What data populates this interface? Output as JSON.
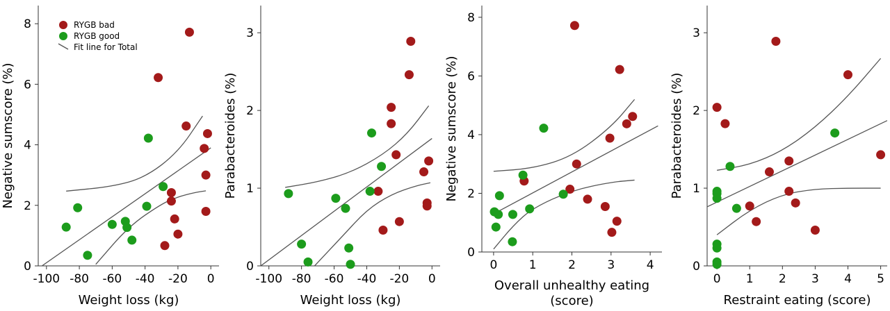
{
  "legend": {
    "entries": [
      {
        "label": "RYGB bad",
        "color": "#a31a1a",
        "kind": "marker"
      },
      {
        "label": "RYGB good",
        "color": "#1c9c1c",
        "kind": "marker"
      },
      {
        "label": "Fit line for Total",
        "color": "#555555",
        "kind": "line"
      }
    ]
  },
  "colors": {
    "bad": "#a31a1a",
    "good": "#1c9c1c",
    "fit": "#555555",
    "axis": "#333333"
  },
  "chart_data": [
    {
      "type": "scatter",
      "xlabel": "Weight loss (kg)",
      "ylabel": "Negative sumscore (%)",
      "xlim": [
        -105,
        5
      ],
      "ylim": [
        0,
        8.6
      ],
      "xticks": [
        -100,
        -80,
        -60,
        -40,
        -20,
        0
      ],
      "yticks": [
        0,
        2,
        4,
        6,
        8
      ],
      "series": [
        {
          "name": "RYGB bad",
          "points": [
            [
              -13,
              7.72
            ],
            [
              -32,
              6.22
            ],
            [
              -2,
              4.37
            ],
            [
              -15,
              4.62
            ],
            [
              -4,
              3.88
            ],
            [
              -3,
              3.0
            ],
            [
              -24,
              2.42
            ],
            [
              -24,
              2.14
            ],
            [
              -22,
              1.55
            ],
            [
              -3,
              1.8
            ],
            [
              -20,
              1.05
            ],
            [
              -28,
              0.67
            ]
          ]
        },
        {
          "name": "RYGB good",
          "points": [
            [
              -38,
              4.22
            ],
            [
              -29,
              2.62
            ],
            [
              -39,
              1.97
            ],
            [
              -81,
              1.92
            ],
            [
              -88,
              1.28
            ],
            [
              -60,
              1.37
            ],
            [
              -52,
              1.47
            ],
            [
              -51,
              1.27
            ],
            [
              -48,
              0.85
            ],
            [
              -75,
              0.35
            ]
          ]
        }
      ],
      "fit": {
        "x": [
          -108,
          0
        ],
        "y": [
          -0.2,
          3.9
        ]
      },
      "ci_upper": {
        "x": [
          -88,
          -60,
          -40,
          -20,
          -5
        ],
        "y": [
          2.47,
          2.62,
          2.92,
          3.75,
          4.95
        ]
      },
      "ci_lower": {
        "x": [
          -70,
          -50,
          -30,
          -20,
          -10,
          -3
        ],
        "y": [
          0.05,
          1.3,
          2.05,
          2.28,
          2.42,
          2.48
        ]
      },
      "legend": true
    },
    {
      "type": "scatter",
      "xlabel": "Weight loss (kg)",
      "ylabel": "Parabacteroides (%)",
      "xlim": [
        -105,
        5
      ],
      "ylim": [
        0,
        3.35
      ],
      "xticks": [
        -100,
        -80,
        -60,
        -40,
        -20,
        0
      ],
      "yticks": [
        0,
        1,
        2,
        3
      ],
      "series": [
        {
          "name": "RYGB bad",
          "points": [
            [
              -13,
              2.89
            ],
            [
              -14,
              2.46
            ],
            [
              -25,
              2.04
            ],
            [
              -25,
              1.83
            ],
            [
              -22,
              1.43
            ],
            [
              -2,
              1.35
            ],
            [
              -5,
              1.21
            ],
            [
              -33,
              0.96
            ],
            [
              -3,
              0.81
            ],
            [
              -3,
              0.77
            ],
            [
              -20,
              0.57
            ],
            [
              -30,
              0.46
            ]
          ]
        },
        {
          "name": "RYGB good",
          "points": [
            [
              -37,
              1.71
            ],
            [
              -31,
              1.28
            ],
            [
              -38,
              0.96
            ],
            [
              -88,
              0.93
            ],
            [
              -59,
              0.87
            ],
            [
              -53,
              0.74
            ],
            [
              -80,
              0.28
            ],
            [
              -51,
              0.23
            ],
            [
              -50,
              0.02
            ],
            [
              -76,
              0.05
            ]
          ]
        }
      ],
      "fit": {
        "x": [
          -105,
          0
        ],
        "y": [
          0.0,
          1.64
        ]
      },
      "ci_upper": {
        "x": [
          -90,
          -70,
          -50,
          -30,
          -15,
          -2
        ],
        "y": [
          1.01,
          1.08,
          1.2,
          1.43,
          1.7,
          2.06
        ]
      },
      "ci_lower": {
        "x": [
          -72,
          -55,
          -40,
          -25,
          -10,
          -1
        ],
        "y": [
          0.0,
          0.38,
          0.72,
          0.92,
          1.03,
          1.07
        ]
      },
      "legend": false
    },
    {
      "type": "scatter",
      "xlabel": "Overall unhealthy eating (score)",
      "xlabel_lines": [
        "Overall unhealthy eating",
        "(score)"
      ],
      "ylabel": "Negative sumscore (%)",
      "xlim": [
        -0.3,
        4.3
      ],
      "ylim": [
        0,
        8.4
      ],
      "xticks": [
        0,
        1,
        2,
        3,
        4
      ],
      "yticks": [
        0,
        2,
        4,
        6,
        8
      ],
      "series": [
        {
          "name": "RYGB bad",
          "points": [
            [
              2.07,
              7.72
            ],
            [
              3.22,
              6.22
            ],
            [
              3.4,
              4.37
            ],
            [
              3.55,
              4.62
            ],
            [
              2.97,
              3.88
            ],
            [
              2.12,
              3.0
            ],
            [
              0.78,
              2.42
            ],
            [
              1.95,
              2.14
            ],
            [
              2.4,
              1.8
            ],
            [
              2.85,
              1.55
            ],
            [
              3.15,
              1.05
            ],
            [
              3.02,
              0.67
            ]
          ]
        },
        {
          "name": "RYGB good",
          "points": [
            [
              1.28,
              4.22
            ],
            [
              0.75,
              2.62
            ],
            [
              1.78,
              1.97
            ],
            [
              0.15,
              1.92
            ],
            [
              0.02,
              1.37
            ],
            [
              0.12,
              1.28
            ],
            [
              0.49,
              1.28
            ],
            [
              0.92,
              1.47
            ],
            [
              0.06,
              0.85
            ],
            [
              0.48,
              0.35
            ]
          ]
        }
      ],
      "fit": {
        "x": [
          0,
          4.2
        ],
        "y": [
          1.3,
          4.3
        ]
      },
      "ci_upper": {
        "x": [
          0,
          1,
          2,
          3,
          3.6
        ],
        "y": [
          2.75,
          2.85,
          3.25,
          4.25,
          5.2
        ]
      },
      "ci_lower": {
        "x": [
          0,
          0.5,
          1,
          2,
          3,
          3.6
        ],
        "y": [
          0.1,
          0.9,
          1.5,
          2.1,
          2.38,
          2.45
        ]
      },
      "legend": false
    },
    {
      "type": "scatter",
      "xlabel": "Restraint eating (score)",
      "ylabel": "Parabacteroides (%)",
      "xlim": [
        -0.3,
        5.2
      ],
      "ylim": [
        0,
        3.35
      ],
      "xticks": [
        0,
        1,
        2,
        3,
        4,
        5
      ],
      "yticks": [
        0,
        1,
        2,
        3
      ],
      "series": [
        {
          "name": "RYGB bad",
          "points": [
            [
              1.8,
              2.89
            ],
            [
              4.0,
              2.46
            ],
            [
              0.0,
              2.04
            ],
            [
              0.25,
              1.83
            ],
            [
              5.0,
              1.43
            ],
            [
              2.2,
              1.35
            ],
            [
              1.6,
              1.21
            ],
            [
              2.2,
              0.96
            ],
            [
              2.4,
              0.81
            ],
            [
              1.0,
              0.77
            ],
            [
              1.2,
              0.57
            ],
            [
              3.0,
              0.46
            ]
          ]
        },
        {
          "name": "RYGB good",
          "points": [
            [
              3.6,
              1.71
            ],
            [
              0.4,
              1.28
            ],
            [
              0.0,
              0.96
            ],
            [
              0.0,
              0.93
            ],
            [
              0.0,
              0.87
            ],
            [
              0.6,
              0.74
            ],
            [
              0.0,
              0.28
            ],
            [
              0.0,
              0.23
            ],
            [
              0.0,
              0.05
            ],
            [
              0.0,
              0.02
            ]
          ]
        }
      ],
      "fit": {
        "x": [
          -0.3,
          5.2
        ],
        "y": [
          0.76,
          1.87
        ]
      },
      "ci_upper": {
        "x": [
          0,
          1,
          2,
          3,
          4,
          5
        ],
        "y": [
          1.23,
          1.3,
          1.48,
          1.78,
          2.18,
          2.67
        ]
      },
      "ci_lower": {
        "x": [
          0,
          1,
          2,
          3,
          4,
          5
        ],
        "y": [
          0.4,
          0.72,
          0.92,
          0.99,
          1.0,
          1.0
        ]
      },
      "legend": false
    }
  ]
}
